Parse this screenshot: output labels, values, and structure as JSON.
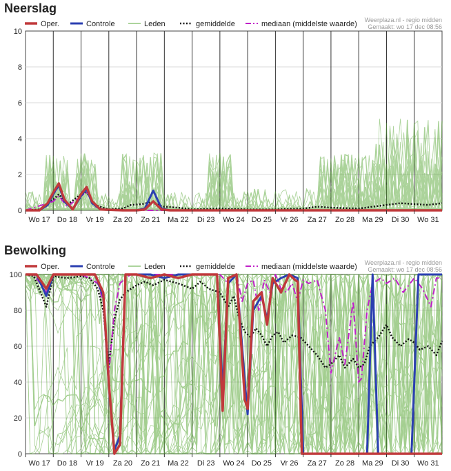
{
  "chart_data": [
    {
      "type": "line",
      "title": "Neerslag",
      "source": "Weerplaza.nl - regio midden",
      "made": "Gemaakt: wo 17 dec 08:56",
      "legend": [
        "Oper.",
        "Controle",
        "Leden",
        "gemiddelde",
        "mediaan (middelste waarde)"
      ],
      "colors": {
        "oper": "#c0393b",
        "controle": "#2b3fb1",
        "leden": "#5aa838",
        "gem": "#111111",
        "med": "#c020c8"
      },
      "categories": [
        "Wo 17",
        "Do 18",
        "Vr 19",
        "Za 20",
        "Zo 21",
        "Ma 22",
        "Di 23",
        "Wo 24",
        "Do 25",
        "Vr 26",
        "Za 27",
        "Zo 28",
        "Ma 29",
        "Di 30",
        "Wo 31"
      ],
      "y_ticks": [
        "0",
        "2",
        "4",
        "6",
        "8",
        "10"
      ],
      "ylim": [
        0,
        10
      ],
      "xlim": [
        0,
        15
      ],
      "series": [
        {
          "key": "oper",
          "x": [
            0,
            0.5,
            0.8,
            1,
            1.2,
            1.4,
            1.7,
            2,
            2.2,
            2.4,
            2.7,
            3.5,
            4,
            4.3,
            4.6,
            4.9,
            5.2,
            5.6,
            6,
            10,
            15
          ],
          "values": [
            0,
            0,
            0.4,
            1.0,
            1.5,
            0.6,
            0.05,
            0.9,
            1.3,
            0.5,
            0.05,
            0,
            0,
            0.05,
            0.5,
            0.05,
            0,
            0,
            0,
            0,
            0
          ]
        },
        {
          "key": "controle",
          "x": [
            0,
            0.5,
            0.8,
            1,
            1.2,
            1.4,
            1.7,
            2,
            2.2,
            2.4,
            2.7,
            3.5,
            4,
            4.3,
            4.6,
            4.9,
            5.2,
            5.6,
            6,
            15
          ],
          "values": [
            0,
            0,
            0.3,
            0.9,
            1.4,
            0.5,
            0.05,
            0.8,
            1.2,
            0.4,
            0.05,
            0,
            0,
            0.1,
            1.1,
            0.1,
            0,
            0,
            0,
            0
          ]
        },
        {
          "key": "gem",
          "x": [
            0,
            0.5,
            1,
            1.2,
            1.5,
            2,
            2.2,
            2.5,
            3,
            3.5,
            3.8,
            4.2,
            4.5,
            5,
            5.5,
            6,
            7,
            8,
            9,
            10,
            10.5,
            11,
            12,
            12.5,
            13,
            13.5,
            14,
            14.5,
            15
          ],
          "values": [
            0,
            0.05,
            0.6,
            0.9,
            0.3,
            0.9,
            1.0,
            0.3,
            0.05,
            0.1,
            0.3,
            0.35,
            0.45,
            0.2,
            0.15,
            0.05,
            0.1,
            0.05,
            0.05,
            0.1,
            0.2,
            0.15,
            0.1,
            0.2,
            0.3,
            0.4,
            0.35,
            0.3,
            0.4
          ]
        },
        {
          "key": "med",
          "x": [
            0,
            1,
            1.2,
            1.5,
            2,
            2.2,
            2.5,
            3,
            15
          ],
          "values": [
            0,
            0.5,
            0.8,
            0.2,
            0.8,
            1.0,
            0.2,
            0,
            0
          ]
        }
      ]
    },
    {
      "type": "line",
      "title": "Bewolking",
      "source": "Weerplaza.nl - regio midden",
      "made": "Gemaakt: wo 17 dec 08:56",
      "legend": [
        "Oper.",
        "Controle",
        "Leden",
        "gemiddelde",
        "mediaan (middelste waarde)"
      ],
      "colors": {
        "oper": "#c0393b",
        "controle": "#2b3fb1",
        "leden": "#5aa838",
        "gem": "#111111",
        "med": "#c020c8"
      },
      "categories": [
        "Wo 17",
        "Do 18",
        "Vr 19",
        "Za 20",
        "Zo 21",
        "Ma 22",
        "Di 23",
        "Wo 24",
        "Do 25",
        "Vr 26",
        "Za 27",
        "Zo 28",
        "Ma 29",
        "Di 30",
        "Wo 31"
      ],
      "y_ticks": [
        "0",
        "20",
        "40",
        "60",
        "80",
        "100"
      ],
      "ylim": [
        0,
        100
      ],
      "xlim": [
        0,
        15
      ],
      "series": [
        {
          "key": "oper",
          "x": [
            0,
            0.4,
            0.75,
            1,
            1.5,
            2,
            2.5,
            2.8,
            3.0,
            3.2,
            3.4,
            3.6,
            4,
            4.5,
            5,
            5.5,
            6,
            6.5,
            6.9,
            7.1,
            7.3,
            7.6,
            7.9,
            8,
            8.2,
            8.5,
            8.7,
            8.9,
            9.2,
            9.5,
            9.7,
            9.8,
            9.95,
            10.2,
            15
          ],
          "values": [
            100,
            100,
            92,
            100,
            100,
            100,
            100,
            90,
            40,
            0,
            5,
            100,
            100,
            98,
            100,
            98,
            100,
            100,
            100,
            24,
            98,
            100,
            30,
            25,
            85,
            90,
            72,
            98,
            90,
            100,
            97,
            96,
            0,
            0,
            0
          ]
        },
        {
          "key": "controle",
          "x": [
            0,
            0.4,
            0.75,
            1,
            1.5,
            2,
            2.5,
            2.8,
            3.0,
            3.2,
            3.4,
            3.6,
            4,
            4.5,
            5,
            5.5,
            6,
            6.5,
            6.9,
            7.1,
            7.3,
            7.6,
            7.9,
            8,
            8.2,
            8.5,
            8.7,
            8.9,
            9.2,
            9.5,
            9.8,
            10.0,
            10.2,
            11,
            12,
            12.3,
            12.5,
            12.7,
            13,
            13.5,
            13.9,
            14.15,
            15
          ],
          "values": [
            100,
            100,
            88,
            100,
            100,
            100,
            100,
            88,
            38,
            2,
            10,
            100,
            100,
            100,
            98,
            100,
            100,
            100,
            100,
            35,
            95,
            100,
            40,
            22,
            80,
            88,
            75,
            95,
            98,
            100,
            98,
            0,
            0,
            0,
            0,
            0,
            100,
            0,
            0,
            0,
            0,
            100,
            100
          ]
        },
        {
          "key": "gem",
          "x": [
            0,
            0.3,
            0.75,
            1,
            1.5,
            2,
            2.3,
            2.6,
            2.8,
            3.0,
            3.2,
            3.4,
            3.6,
            3.8,
            4,
            4.3,
            4.6,
            5,
            5.5,
            6,
            6.3,
            6.6,
            7,
            7.3,
            7.5,
            7.7,
            7.9,
            8.1,
            8.3,
            8.5,
            8.7,
            8.9,
            9.1,
            9.3,
            9.6,
            9.9,
            10.2,
            10.5,
            10.8,
            11,
            11.3,
            11.5,
            11.8,
            12,
            12.2,
            12.4,
            12.7,
            13,
            13.2,
            13.5,
            13.8,
            14,
            14.2,
            14.5,
            14.8,
            15
          ],
          "values": [
            100,
            99,
            82,
            99,
            98,
            99,
            98,
            92,
            80,
            50,
            75,
            86,
            90,
            92,
            94,
            96,
            94,
            97,
            95,
            92,
            96,
            92,
            90,
            82,
            88,
            75,
            68,
            65,
            70,
            66,
            60,
            66,
            68,
            62,
            66,
            65,
            60,
            55,
            48,
            50,
            55,
            48,
            53,
            48,
            50,
            60,
            65,
            72,
            65,
            60,
            64,
            62,
            58,
            60,
            55,
            63
          ]
        },
        {
          "key": "med",
          "x": [
            0,
            0.3,
            0.75,
            1,
            1.5,
            2,
            2.3,
            2.6,
            2.8,
            3.0,
            3.2,
            3.4,
            3.6,
            3.8,
            4,
            4.5,
            5,
            5.5,
            6,
            6.5,
            7,
            7.3,
            7.6,
            7.8,
            8.0,
            8.2,
            8.4,
            8.6,
            8.8,
            9.0,
            9.2,
            9.4,
            9.6,
            9.8,
            10.0,
            10.2,
            10.5,
            10.8,
            11,
            11.3,
            11.5,
            11.8,
            12,
            12.1,
            12.3,
            12.5,
            12.8,
            13,
            13.3,
            13.6,
            14,
            14.3,
            14.6,
            14.8,
            15
          ],
          "values": [
            100,
            100,
            90,
            100,
            100,
            100,
            98,
            95,
            85,
            45,
            80,
            95,
            98,
            100,
            100,
            100,
            100,
            100,
            100,
            100,
            100,
            95,
            100,
            85,
            95,
            97,
            80,
            97,
            90,
            100,
            92,
            90,
            95,
            85,
            97,
            95,
            97,
            80,
            45,
            65,
            50,
            85,
            40,
            42,
            80,
            95,
            98,
            95,
            98,
            90,
            98,
            92,
            82,
            98,
            98
          ]
        }
      ]
    }
  ]
}
